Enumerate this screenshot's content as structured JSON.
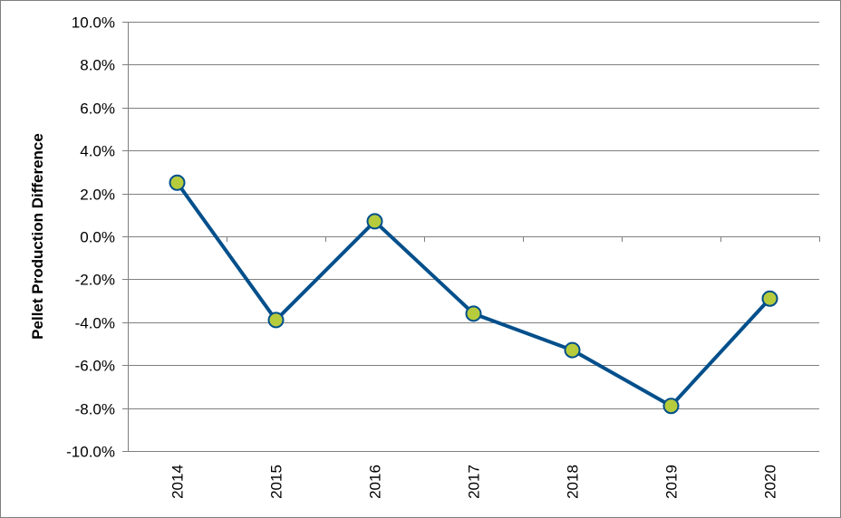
{
  "chart_data": {
    "type": "line",
    "title": "",
    "xlabel": "",
    "ylabel": "Pellet Production Difference",
    "x": [
      "2014",
      "2015",
      "2016",
      "2017",
      "2018",
      "2019",
      "2020"
    ],
    "series": [
      {
        "values": [
          2.5,
          -3.9,
          0.7,
          -3.6,
          -5.3,
          -7.9,
          -2.9
        ]
      }
    ],
    "ylim": [
      -10,
      10
    ],
    "yticks": [
      -10,
      -8,
      -6,
      -4,
      -2,
      0,
      2,
      4,
      6,
      8,
      10
    ],
    "ytick_labels": [
      "-10.0%",
      "-8.0%",
      "-6.0%",
      "-4.0%",
      "-2.0%",
      "0.0%",
      "2.0%",
      "4.0%",
      "6.0%",
      "8.0%",
      "10.0%"
    ],
    "grid": true,
    "legend": "none",
    "colors": {
      "line": "#004f8b",
      "marker_fill": "#b7cc3c",
      "marker_edge": "#004f8b",
      "grid": "#7f7f7f",
      "axis": "#7f7f7f"
    }
  }
}
